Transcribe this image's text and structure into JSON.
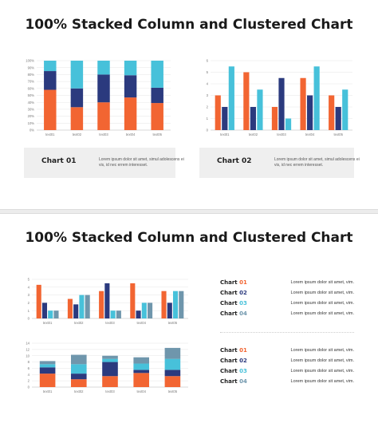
{
  "slide1": {
    "title": "100% Stacked Column and Clustered Chart",
    "captions": [
      {
        "title": "Chart 01",
        "text": "Lorem ipsum dolor sit amet, simul adolescens ei vis, id nec errem interesset."
      },
      {
        "title": "Chart 02",
        "text": "Lorem ipsum dolor sit amet, simul adolescens ei vis, id nec errem interesset."
      }
    ]
  },
  "slide2": {
    "title": "100% Stacked Column and Clustered Chart",
    "legend_group_1": [
      {
        "word": "Chart",
        "num": "01",
        "text": "Lorem ipsum dolor sit amet, vim."
      },
      {
        "word": "Chart",
        "num": "02",
        "text": "Lorem ipsum dolor sit amet, vim."
      },
      {
        "word": "Chart",
        "num": "03",
        "text": "Lorem ipsum dolor sit amet, vim."
      },
      {
        "word": "Chart",
        "num": "04",
        "text": "Lorem ipsum dolor sit amet, vim."
      }
    ],
    "legend_group_2": [
      {
        "word": "Chart",
        "num": "01",
        "text": "Lorem ipsum dolor sit amet, vim."
      },
      {
        "word": "Chart",
        "num": "02",
        "text": "Lorem ipsum dolor sit amet, vim."
      },
      {
        "word": "Chart",
        "num": "03",
        "text": "Lorem ipsum dolor sit amet, vim."
      },
      {
        "word": "Chart",
        "num": "04",
        "text": "Lorem ipsum dolor sit amet, vim."
      }
    ]
  },
  "colors": {
    "orange": "#f26532",
    "navy": "#2b3a7e",
    "cyan": "#47c1da",
    "steel": "#6f96ac"
  },
  "chart_data": [
    {
      "type": "bar",
      "stacked": "percent",
      "categories": [
        "text01",
        "text02",
        "text03",
        "text04",
        "text05"
      ],
      "yticks": [
        "0%",
        "10%",
        "20%",
        "30%",
        "40%",
        "50%",
        "60%",
        "70%",
        "80%",
        "90%",
        "100%"
      ],
      "ylim": [
        0,
        100
      ],
      "series": [
        {
          "color": "#f26532",
          "values": [
            58,
            33,
            40,
            47,
            39
          ]
        },
        {
          "color": "#2b3a7e",
          "values": [
            27,
            27,
            40,
            32,
            22
          ]
        },
        {
          "color": "#47c1da",
          "values": [
            15,
            40,
            20,
            21,
            39
          ]
        }
      ]
    },
    {
      "type": "bar",
      "stacked": "none",
      "categories": [
        "text01",
        "text02",
        "text03",
        "text04",
        "text05"
      ],
      "yticks": [
        "0",
        "1",
        "2",
        "3",
        "4",
        "5",
        "6"
      ],
      "ylim": [
        0,
        6
      ],
      "series": [
        {
          "color": "#f26532",
          "values": [
            3.0,
            5.0,
            2.0,
            4.5,
            3.0
          ]
        },
        {
          "color": "#2b3a7e",
          "values": [
            2.0,
            2.0,
            4.5,
            3.0,
            2.0
          ]
        },
        {
          "color": "#47c1da",
          "values": [
            5.5,
            3.5,
            1.0,
            5.5,
            3.5
          ]
        }
      ]
    },
    {
      "type": "bar",
      "stacked": "none",
      "categories": [
        "text01",
        "text02",
        "text03",
        "text04",
        "text05"
      ],
      "yticks": [
        "0",
        "1",
        "2",
        "3",
        "4",
        "5"
      ],
      "ylim": [
        0,
        5
      ],
      "series": [
        {
          "color": "#f26532",
          "values": [
            4.3,
            2.5,
            3.5,
            4.5,
            3.5
          ]
        },
        {
          "color": "#2b3a7e",
          "values": [
            2.0,
            1.8,
            4.5,
            1.0,
            2.0
          ]
        },
        {
          "color": "#47c1da",
          "values": [
            1.0,
            3.0,
            1.0,
            2.0,
            3.5
          ]
        },
        {
          "color": "#6f96ac",
          "values": [
            1.0,
            3.0,
            1.0,
            2.0,
            3.5
          ]
        }
      ]
    },
    {
      "type": "bar",
      "stacked": "normal",
      "categories": [
        "text01",
        "text02",
        "text03",
        "text04",
        "text05"
      ],
      "yticks": [
        "0",
        "2",
        "4",
        "6",
        "8",
        "10",
        "12",
        "14"
      ],
      "ylim": [
        0,
        14
      ],
      "series": [
        {
          "color": "#f26532",
          "values": [
            4.3,
            2.5,
            3.5,
            4.5,
            3.5
          ]
        },
        {
          "color": "#2b3a7e",
          "values": [
            2.0,
            1.8,
            4.5,
            1.0,
            2.0
          ]
        },
        {
          "color": "#47c1da",
          "values": [
            1.0,
            3.0,
            1.0,
            2.0,
            3.5
          ]
        },
        {
          "color": "#6f96ac",
          "values": [
            1.0,
            3.0,
            1.0,
            2.0,
            3.5
          ]
        }
      ]
    }
  ]
}
